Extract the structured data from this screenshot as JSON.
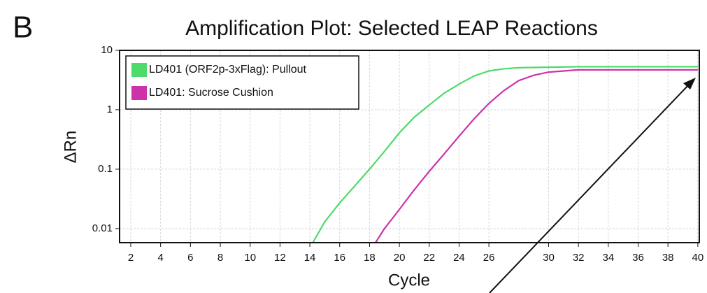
{
  "chart_data": {
    "type": "line",
    "panel": "B",
    "title": "Amplification Plot: Selected LEAP Reactions",
    "xlabel": "Cycle",
    "ylabel": "ΔRn",
    "log_y": true,
    "grid": true,
    "legend": "upper left",
    "xlim": [
      1.25,
      40.1
    ],
    "ylim": [
      0.0058,
      10
    ],
    "xticks": [
      2,
      4,
      6,
      8,
      10,
      12,
      14,
      16,
      18,
      20,
      22,
      24,
      26,
      30,
      32,
      34,
      36,
      38,
      40
    ],
    "yticks": [
      10,
      1,
      0.1,
      0.01
    ],
    "series": [
      {
        "name": "LD401 (ORF2p-3xFlag): Pullout",
        "color": "#4ddb6a",
        "x": [
          14.2,
          15,
          16,
          17,
          18,
          19,
          20,
          21,
          22,
          23,
          24,
          25,
          26,
          27,
          28,
          30,
          32,
          36,
          40
        ],
        "values": [
          0.0058,
          0.013,
          0.027,
          0.052,
          0.1,
          0.2,
          0.41,
          0.75,
          1.2,
          1.9,
          2.7,
          3.7,
          4.5,
          4.9,
          5.1,
          5.2,
          5.3,
          5.3,
          5.3
        ]
      },
      {
        "name": "LD401: Sucrose Cushion",
        "color": "#cc33aa",
        "x": [
          18.4,
          19,
          20,
          21,
          22,
          23,
          24,
          25,
          26,
          27,
          28,
          29,
          30,
          32,
          36,
          40
        ],
        "values": [
          0.0058,
          0.01,
          0.021,
          0.045,
          0.092,
          0.18,
          0.36,
          0.7,
          1.28,
          2.1,
          3.1,
          3.8,
          4.3,
          4.7,
          4.7,
          4.7
        ]
      }
    ]
  }
}
